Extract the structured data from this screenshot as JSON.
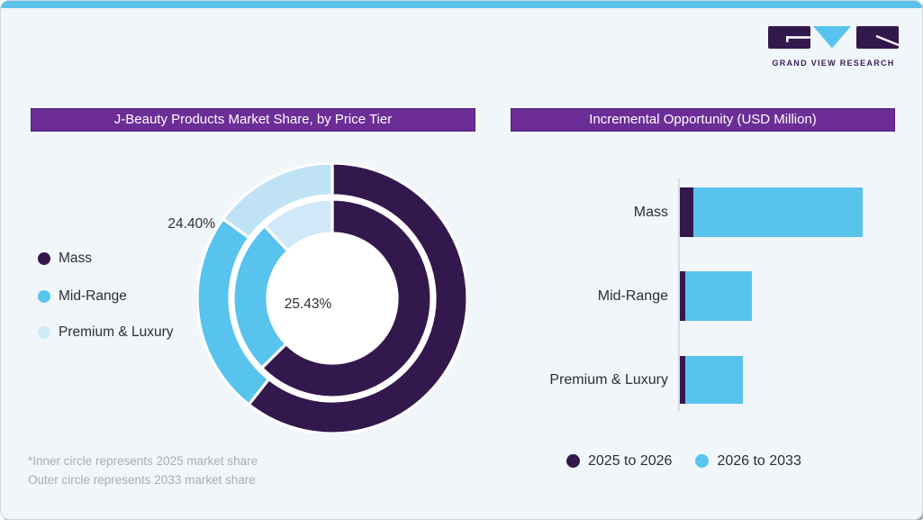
{
  "brand": {
    "logo_text": "GRAND VIEW RESEARCH"
  },
  "donut_panel": {
    "title": "J-Beauty Products Market Share, by Price Tier",
    "legend": [
      {
        "label": "Mass",
        "color": "#33184d"
      },
      {
        "label": "Mid-Range",
        "color": "#58c4ee"
      },
      {
        "label": "Premium & Luxury",
        "color": "#cfe9f8"
      }
    ],
    "outer_ring_label": "24.40%",
    "inner_ring_label": "25.43%",
    "footnotes": [
      "*Inner circle represents 2025 market share",
      "Outer circle represents 2033 market share"
    ]
  },
  "bar_panel": {
    "title": "Incremental Opportunity (USD Million)",
    "legend": [
      {
        "label": "2025 to 2026",
        "color": "#33184d"
      },
      {
        "label": "2026 to 2033",
        "color": "#58c4ee"
      }
    ]
  },
  "colors": {
    "accent_purple": "#6c2d97",
    "dark_purple": "#33184d",
    "mid_blue": "#58c4ee",
    "light_blue_outer": "#bfe2f5",
    "light_blue_inner": "#cfe9f8",
    "top_strip_blue": "#5bc0ea",
    "card_background": "#f1f6fa"
  },
  "chart_data": [
    {
      "type": "pie",
      "subtype": "double-donut",
      "title": "J-Beauty Products Market Share, by Price Tier",
      "categories": [
        "Mass",
        "Mid-Range",
        "Premium & Luxury"
      ],
      "series": [
        {
          "name": "2025 market share (inner circle)",
          "values": [
            62.6,
            25.43,
            11.97
          ]
        },
        {
          "name": "2033 market share (outer circle)",
          "values": [
            60.6,
            24.4,
            15.0
          ]
        }
      ],
      "labeled_points": [
        {
          "series": "2025 market share (inner circle)",
          "category": "Mid-Range",
          "label": "25.43%"
        },
        {
          "series": "2033 market share (outer circle)",
          "category": "Mid-Range",
          "label": "24.40%"
        }
      ],
      "colors_inner": [
        "#33184d",
        "#58c4ee",
        "#cfe9f8"
      ],
      "colors_outer": [
        "#33184d",
        "#58c4ee",
        "#bfe2f5"
      ],
      "start_angle_deg": 0,
      "direction": "clockwise",
      "legend_position": "left"
    },
    {
      "type": "bar",
      "orientation": "horizontal",
      "stacked": true,
      "title": "Incremental Opportunity (USD Million)",
      "categories": [
        "Mass",
        "Mid-Range",
        "Premium & Luxury"
      ],
      "series": [
        {
          "name": "2025 to 2026",
          "color": "#33184d",
          "values": [
            15,
            6,
            6
          ]
        },
        {
          "name": "2026 to 2033",
          "color": "#58c4ee",
          "values": [
            188,
            74,
            64
          ]
        }
      ],
      "value_axis": "unlabeled; values estimated in relative pixel units",
      "legend_position": "bottom"
    }
  ]
}
